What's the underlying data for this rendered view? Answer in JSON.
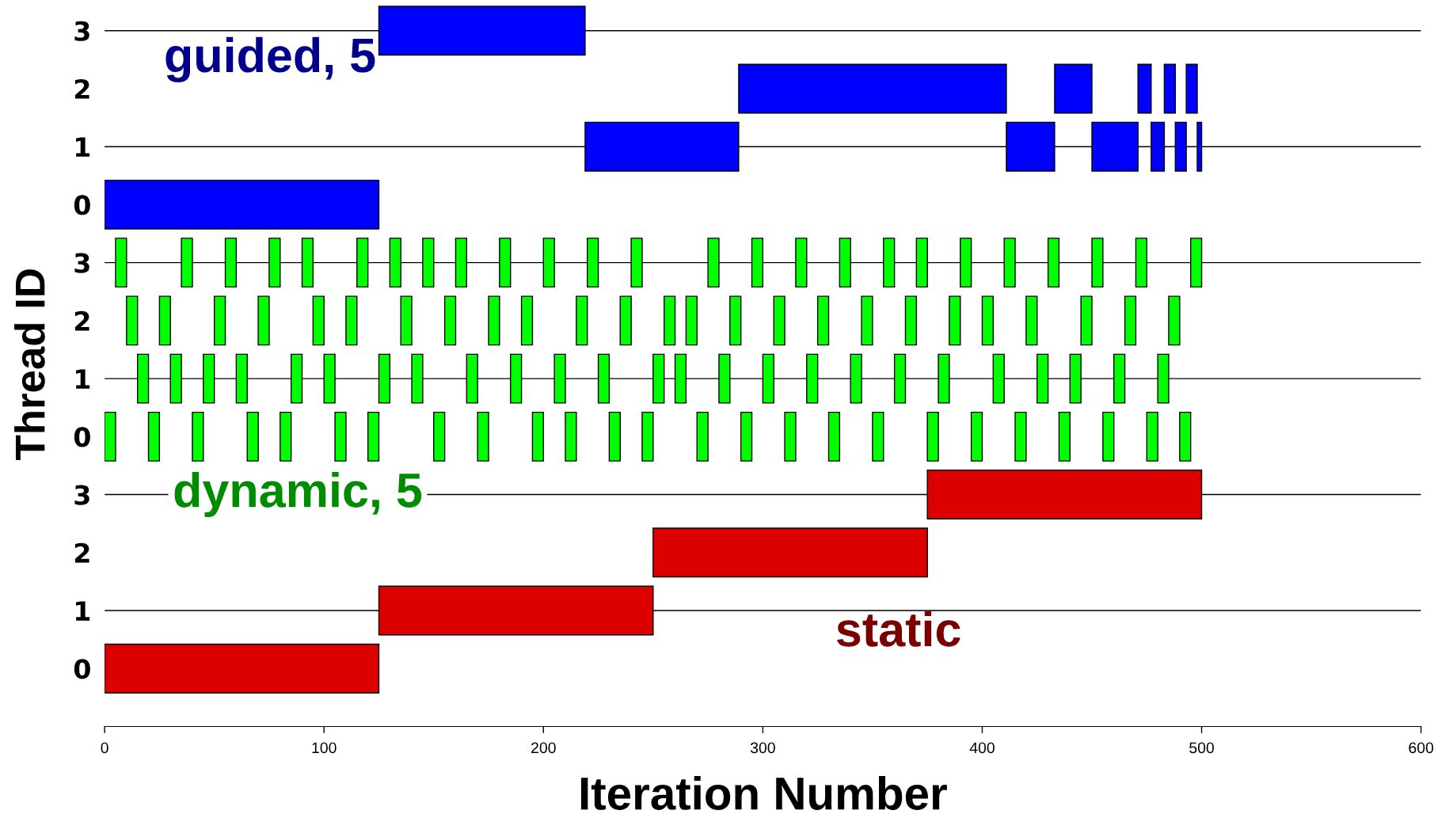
{
  "chart_data": {
    "type": "bar",
    "orientation": "horizontal",
    "xlabel": "Iteration Number",
    "ylabel": "Thread ID",
    "categories": [
      "3",
      "2",
      "1",
      "0",
      "3",
      "2",
      "1",
      "0",
      "3",
      "2",
      "1",
      "0"
    ],
    "xlim": [
      0,
      600
    ],
    "xticks": [
      0,
      100,
      200,
      300,
      400,
      500,
      600
    ],
    "grid": "y",
    "annotations": [
      "guided, 5",
      "dynamic, 5",
      "static"
    ],
    "series": [
      {
        "base": [
          125,
          289,
          219,
          0,
          5,
          10,
          15,
          0,
          375,
          250,
          125,
          0
        ],
        "values": [
          94,
          122,
          70,
          125,
          5,
          5,
          5,
          5,
          125,
          125,
          125,
          125
        ],
        "colors": [
          "#0000ff",
          "#0000ff",
          "#0000ff",
          "#0000ff",
          "#00ff00",
          "#00ff00",
          "#00ff00",
          "#00ff00",
          "#dd0000",
          "#dd0000",
          "#dd0000",
          "#dd0000"
        ]
      },
      {
        "base": [
          null,
          433,
          411,
          null,
          35,
          25,
          30,
          20,
          null,
          null,
          null,
          null
        ],
        "values": [
          null,
          17,
          22,
          null,
          5,
          5,
          5,
          5,
          null,
          null,
          null,
          null
        ],
        "colors": [
          null,
          "#0000ff",
          "#0000ff",
          null,
          "#00ff00",
          "#00ff00",
          "#00ff00",
          "#00ff00",
          null,
          null,
          null,
          null
        ]
      },
      {
        "base": [
          null,
          471,
          450,
          null,
          55,
          50,
          45,
          40,
          null,
          null,
          null,
          null
        ],
        "values": [
          null,
          6,
          21,
          null,
          5,
          5,
          5,
          5,
          null,
          null,
          null,
          null
        ],
        "colors": [
          null,
          "#0000ff",
          "#0000ff",
          null,
          "#00ff00",
          "#00ff00",
          "#00ff00",
          "#00ff00",
          null,
          null,
          null,
          null
        ]
      },
      {
        "base": [
          null,
          483,
          477,
          null,
          75,
          70,
          60,
          65,
          null,
          null,
          null,
          null
        ],
        "values": [
          null,
          5,
          6,
          null,
          5,
          5,
          5,
          5,
          null,
          null,
          null,
          null
        ],
        "colors": [
          null,
          "#0000ff",
          "#0000ff",
          null,
          "#00ff00",
          "#00ff00",
          "#00ff00",
          "#00ff00",
          null,
          null,
          null,
          null
        ]
      },
      {
        "base": [
          null,
          493,
          488,
          null,
          90,
          95,
          85,
          80,
          null,
          null,
          null,
          null
        ],
        "values": [
          null,
          5,
          5,
          null,
          5,
          5,
          5,
          5,
          null,
          null,
          null,
          null
        ],
        "colors": [
          null,
          "#0000ff",
          "#0000ff",
          null,
          "#00ff00",
          "#00ff00",
          "#00ff00",
          "#00ff00",
          null,
          null,
          null,
          null
        ]
      },
      {
        "base": [
          null,
          null,
          498,
          null,
          115,
          110,
          100,
          105,
          null,
          null,
          null,
          null
        ],
        "values": [
          null,
          null,
          2,
          null,
          5,
          5,
          5,
          5,
          null,
          null,
          null,
          null
        ],
        "colors": [
          null,
          null,
          "#0000ff",
          null,
          "#00ff00",
          "#00ff00",
          "#00ff00",
          "#00ff00",
          null,
          null,
          null,
          null
        ]
      },
      {
        "base": [
          null,
          null,
          null,
          null,
          130,
          135,
          125,
          120,
          null,
          null,
          null,
          null
        ],
        "values": [
          null,
          null,
          null,
          null,
          5,
          5,
          5,
          5,
          null,
          null,
          null,
          null
        ],
        "color": "#00ff00"
      },
      {
        "base": [
          null,
          null,
          null,
          null,
          145,
          155,
          140,
          150,
          null,
          null,
          null,
          null
        ],
        "values": [
          null,
          null,
          null,
          null,
          5,
          5,
          5,
          5,
          null,
          null,
          null,
          null
        ],
        "color": "#00ff00"
      },
      {
        "base": [
          null,
          null,
          null,
          null,
          160,
          175,
          165,
          170,
          null,
          null,
          null,
          null
        ],
        "values": [
          null,
          null,
          null,
          null,
          5,
          5,
          5,
          5,
          null,
          null,
          null,
          null
        ],
        "color": "#00ff00"
      },
      {
        "base": [
          null,
          null,
          null,
          null,
          180,
          190,
          185,
          195,
          null,
          null,
          null,
          null
        ],
        "values": [
          null,
          null,
          null,
          null,
          5,
          5,
          5,
          5,
          null,
          null,
          null,
          null
        ],
        "color": "#00ff00"
      },
      {
        "base": [
          null,
          null,
          null,
          null,
          200,
          215,
          205,
          210,
          null,
          null,
          null,
          null
        ],
        "values": [
          null,
          null,
          null,
          null,
          5,
          5,
          5,
          5,
          null,
          null,
          null,
          null
        ],
        "color": "#00ff00"
      },
      {
        "base": [
          null,
          null,
          null,
          null,
          220,
          235,
          225,
          230,
          null,
          null,
          null,
          null
        ],
        "values": [
          null,
          null,
          null,
          null,
          5,
          5,
          5,
          5,
          null,
          null,
          null,
          null
        ],
        "color": "#00ff00"
      },
      {
        "base": [
          null,
          null,
          null,
          null,
          240,
          255,
          250,
          245,
          null,
          null,
          null,
          null
        ],
        "values": [
          null,
          null,
          null,
          null,
          5,
          5,
          5,
          5,
          null,
          null,
          null,
          null
        ],
        "color": "#00ff00"
      },
      {
        "base": [
          null,
          null,
          null,
          null,
          275,
          265,
          260,
          270,
          null,
          null,
          null,
          null
        ],
        "values": [
          null,
          null,
          null,
          null,
          5,
          5,
          5,
          5,
          null,
          null,
          null,
          null
        ],
        "color": "#00ff00"
      },
      {
        "base": [
          null,
          null,
          null,
          null,
          295,
          285,
          280,
          290,
          null,
          null,
          null,
          null
        ],
        "values": [
          null,
          null,
          null,
          null,
          5,
          5,
          5,
          5,
          null,
          null,
          null,
          null
        ],
        "color": "#00ff00"
      },
      {
        "base": [
          null,
          null,
          null,
          null,
          315,
          305,
          300,
          310,
          null,
          null,
          null,
          null
        ],
        "values": [
          null,
          null,
          null,
          null,
          5,
          5,
          5,
          5,
          null,
          null,
          null,
          null
        ],
        "color": "#00ff00"
      },
      {
        "base": [
          null,
          null,
          null,
          null,
          335,
          325,
          320,
          330,
          null,
          null,
          null,
          null
        ],
        "values": [
          null,
          null,
          null,
          null,
          5,
          5,
          5,
          5,
          null,
          null,
          null,
          null
        ],
        "color": "#00ff00"
      },
      {
        "base": [
          null,
          null,
          null,
          null,
          355,
          345,
          340,
          350,
          null,
          null,
          null,
          null
        ],
        "values": [
          null,
          null,
          null,
          null,
          5,
          5,
          5,
          5,
          null,
          null,
          null,
          null
        ],
        "color": "#00ff00"
      },
      {
        "base": [
          null,
          null,
          null,
          null,
          370,
          365,
          360,
          375,
          null,
          null,
          null,
          null
        ],
        "values": [
          null,
          null,
          null,
          null,
          5,
          5,
          5,
          5,
          null,
          null,
          null,
          null
        ],
        "color": "#00ff00"
      },
      {
        "base": [
          null,
          null,
          null,
          null,
          390,
          385,
          380,
          395,
          null,
          null,
          null,
          null
        ],
        "values": [
          null,
          null,
          null,
          null,
          5,
          5,
          5,
          5,
          null,
          null,
          null,
          null
        ],
        "color": "#00ff00"
      },
      {
        "base": [
          null,
          null,
          null,
          null,
          410,
          400,
          405,
          415,
          null,
          null,
          null,
          null
        ],
        "values": [
          null,
          null,
          null,
          null,
          5,
          5,
          5,
          5,
          null,
          null,
          null,
          null
        ],
        "color": "#00ff00"
      },
      {
        "base": [
          null,
          null,
          null,
          null,
          430,
          420,
          425,
          435,
          null,
          null,
          null,
          null
        ],
        "values": [
          null,
          null,
          null,
          null,
          5,
          5,
          5,
          5,
          null,
          null,
          null,
          null
        ],
        "color": "#00ff00"
      },
      {
        "base": [
          null,
          null,
          null,
          null,
          450,
          445,
          440,
          455,
          null,
          null,
          null,
          null
        ],
        "values": [
          null,
          null,
          null,
          null,
          5,
          5,
          5,
          5,
          null,
          null,
          null,
          null
        ],
        "color": "#00ff00"
      },
      {
        "base": [
          null,
          null,
          null,
          null,
          470,
          465,
          460,
          475,
          null,
          null,
          null,
          null
        ],
        "values": [
          null,
          null,
          null,
          null,
          5,
          5,
          5,
          5,
          null,
          null,
          null,
          null
        ],
        "color": "#00ff00"
      },
      {
        "base": [
          null,
          null,
          null,
          null,
          495,
          485,
          480,
          490,
          null,
          null,
          null,
          null
        ],
        "values": [
          null,
          null,
          null,
          null,
          5,
          5,
          5,
          5,
          null,
          null,
          null,
          null
        ],
        "color": "#00ff00"
      }
    ]
  }
}
